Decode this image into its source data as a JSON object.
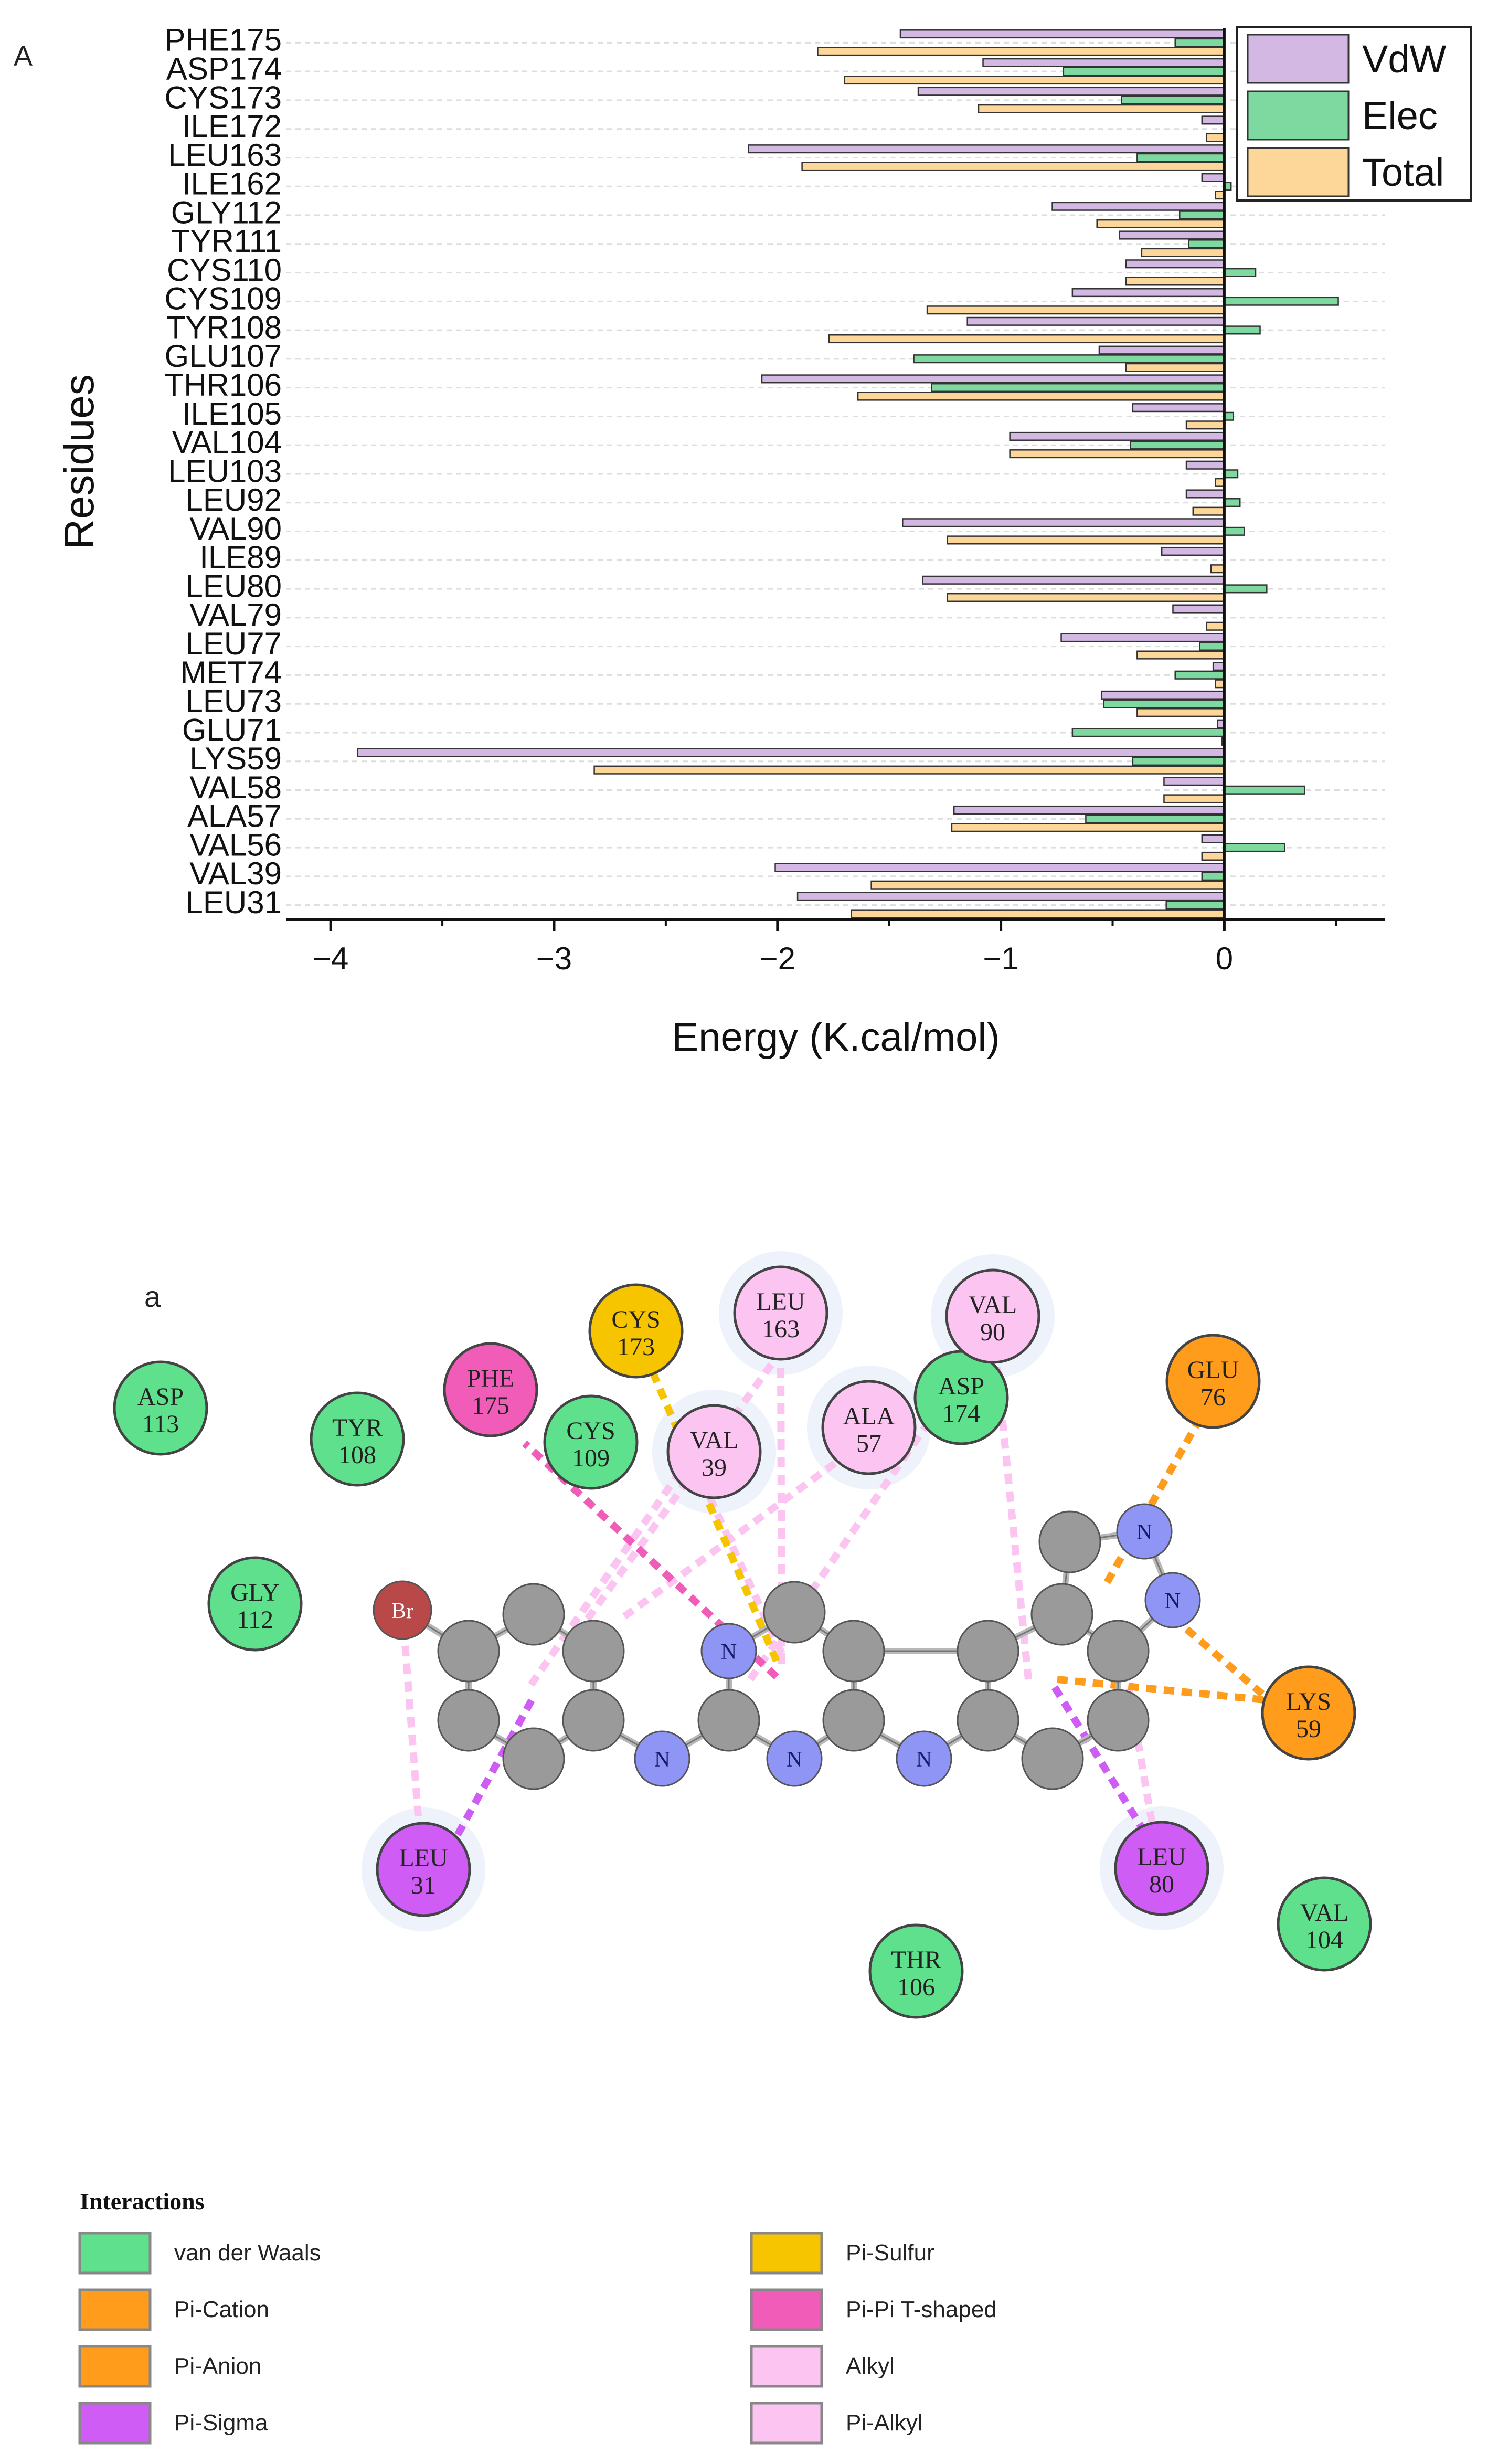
{
  "panel_a": {
    "label": "A",
    "chart_data": {
      "type": "bar",
      "orientation": "horizontal",
      "xlabel": "Energy (K.cal/mol)",
      "ylabel": "Residues",
      "xlim": [
        -4.2,
        0.72
      ],
      "xticks": [
        -4,
        -3,
        -2,
        -1,
        0
      ],
      "xtick_labels": [
        "−4",
        "−3",
        "−2",
        "−1",
        "0"
      ],
      "legend_position": "top-right",
      "categories": [
        "PHE175",
        "ASP174",
        "CYS173",
        "ILE172",
        "LEU163",
        "ILE162",
        "GLY112",
        "TYR111",
        "CYS110",
        "CYS109",
        "TYR108",
        "GLU107",
        "THR106",
        "ILE105",
        "VAL104",
        "LEU103",
        "LEU92",
        "VAL90",
        "ILE89",
        "LEU80",
        "VAL79",
        "LEU77",
        "MET74",
        "LEU73",
        "GLU71",
        "LYS59",
        "VAL58",
        "ALA57",
        "VAL56",
        "VAL39",
        "LEU31"
      ],
      "series": [
        {
          "name": "VdW",
          "color": "#d4b8e4",
          "values": [
            -1.45,
            -1.08,
            -1.37,
            -0.1,
            -2.13,
            -0.1,
            -0.77,
            -0.47,
            -0.44,
            -0.68,
            -1.15,
            -0.56,
            -2.07,
            -0.41,
            -0.96,
            -0.17,
            -0.17,
            -1.44,
            -0.28,
            -1.35,
            -0.23,
            -0.73,
            -0.05,
            -0.55,
            -0.03,
            -3.88,
            -0.27,
            -1.21,
            -0.1,
            -2.01,
            -1.91
          ]
        },
        {
          "name": "Elec",
          "color": "#7dd99f",
          "values": [
            -0.22,
            -0.72,
            -0.46,
            0,
            -0.39,
            0.03,
            -0.2,
            -0.16,
            0.14,
            0.51,
            0.16,
            -1.39,
            -1.31,
            0.04,
            -0.42,
            0.06,
            0.07,
            0.09,
            0,
            0.19,
            0,
            -0.11,
            -0.22,
            -0.54,
            -0.68,
            -0.41,
            0.36,
            -0.62,
            0.27,
            -0.1,
            -0.26
          ]
        },
        {
          "name": "Total",
          "color": "#fdd79a",
          "values": [
            -1.82,
            -1.7,
            -1.1,
            -0.08,
            -1.89,
            -0.04,
            -0.57,
            -0.37,
            -0.44,
            -1.33,
            -1.77,
            -0.44,
            -1.64,
            -0.17,
            -0.96,
            -0.04,
            -0.14,
            -1.24,
            -0.06,
            -1.24,
            -0.08,
            -0.39,
            -0.04,
            -0.39,
            -0.01,
            -2.82,
            -0.27,
            -1.22,
            -0.1,
            -1.58,
            -1.67
          ]
        }
      ]
    }
  },
  "panel_b": {
    "label": "a",
    "legend_title": "Interactions",
    "colors": {
      "vdw": "#5ee08c",
      "orange": "#ff9c1c",
      "sulfur": "#f7c500",
      "pipi": "#f05cb8",
      "alkyl": "#fcc4f0",
      "sigma": "#cf5cf5",
      "atom_c": "#9a9a9a",
      "atom_n": "#8f95f5",
      "atom_br": "#b94848"
    },
    "residues": [
      {
        "name": "ASP",
        "num": "113",
        "kind": "vdw"
      },
      {
        "name": "TYR",
        "num": "108",
        "kind": "vdw"
      },
      {
        "name": "GLY",
        "num": "112",
        "kind": "vdw"
      },
      {
        "name": "PHE",
        "num": "175",
        "kind": "pipi"
      },
      {
        "name": "CYS",
        "num": "109",
        "kind": "vdw"
      },
      {
        "name": "CYS",
        "num": "173",
        "kind": "sulfur"
      },
      {
        "name": "VAL",
        "num": "39",
        "kind": "alkyl"
      },
      {
        "name": "LEU",
        "num": "163",
        "kind": "alkyl"
      },
      {
        "name": "ALA",
        "num": "57",
        "kind": "alkyl"
      },
      {
        "name": "ASP",
        "num": "174",
        "kind": "vdw"
      },
      {
        "name": "VAL",
        "num": "90",
        "kind": "alkyl"
      },
      {
        "name": "GLU",
        "num": "76",
        "kind": "orange"
      },
      {
        "name": "LYS",
        "num": "59",
        "kind": "orange"
      },
      {
        "name": "LEU",
        "num": "31",
        "kind": "sigma"
      },
      {
        "name": "LEU",
        "num": "80",
        "kind": "sigma"
      },
      {
        "name": "THR",
        "num": "106",
        "kind": "vdw"
      },
      {
        "name": "VAL",
        "num": "104",
        "kind": "vdw"
      }
    ],
    "atoms": {
      "br_label": "Br",
      "n_label": "N"
    },
    "legend_items": [
      {
        "label": "van der Waals",
        "color": "#5ee08c"
      },
      {
        "label": "Pi-Cation",
        "color": "#ff9c1c"
      },
      {
        "label": "Pi-Anion",
        "color": "#ff9c1c"
      },
      {
        "label": "Pi-Sigma",
        "color": "#cf5cf5"
      },
      {
        "label": "Pi-Sulfur",
        "color": "#f7c500"
      },
      {
        "label": "Pi-Pi T-shaped",
        "color": "#f05cb8"
      },
      {
        "label": "Alkyl",
        "color": "#fcc4f0"
      },
      {
        "label": "Pi-Alkyl",
        "color": "#fcc4f0"
      }
    ]
  }
}
